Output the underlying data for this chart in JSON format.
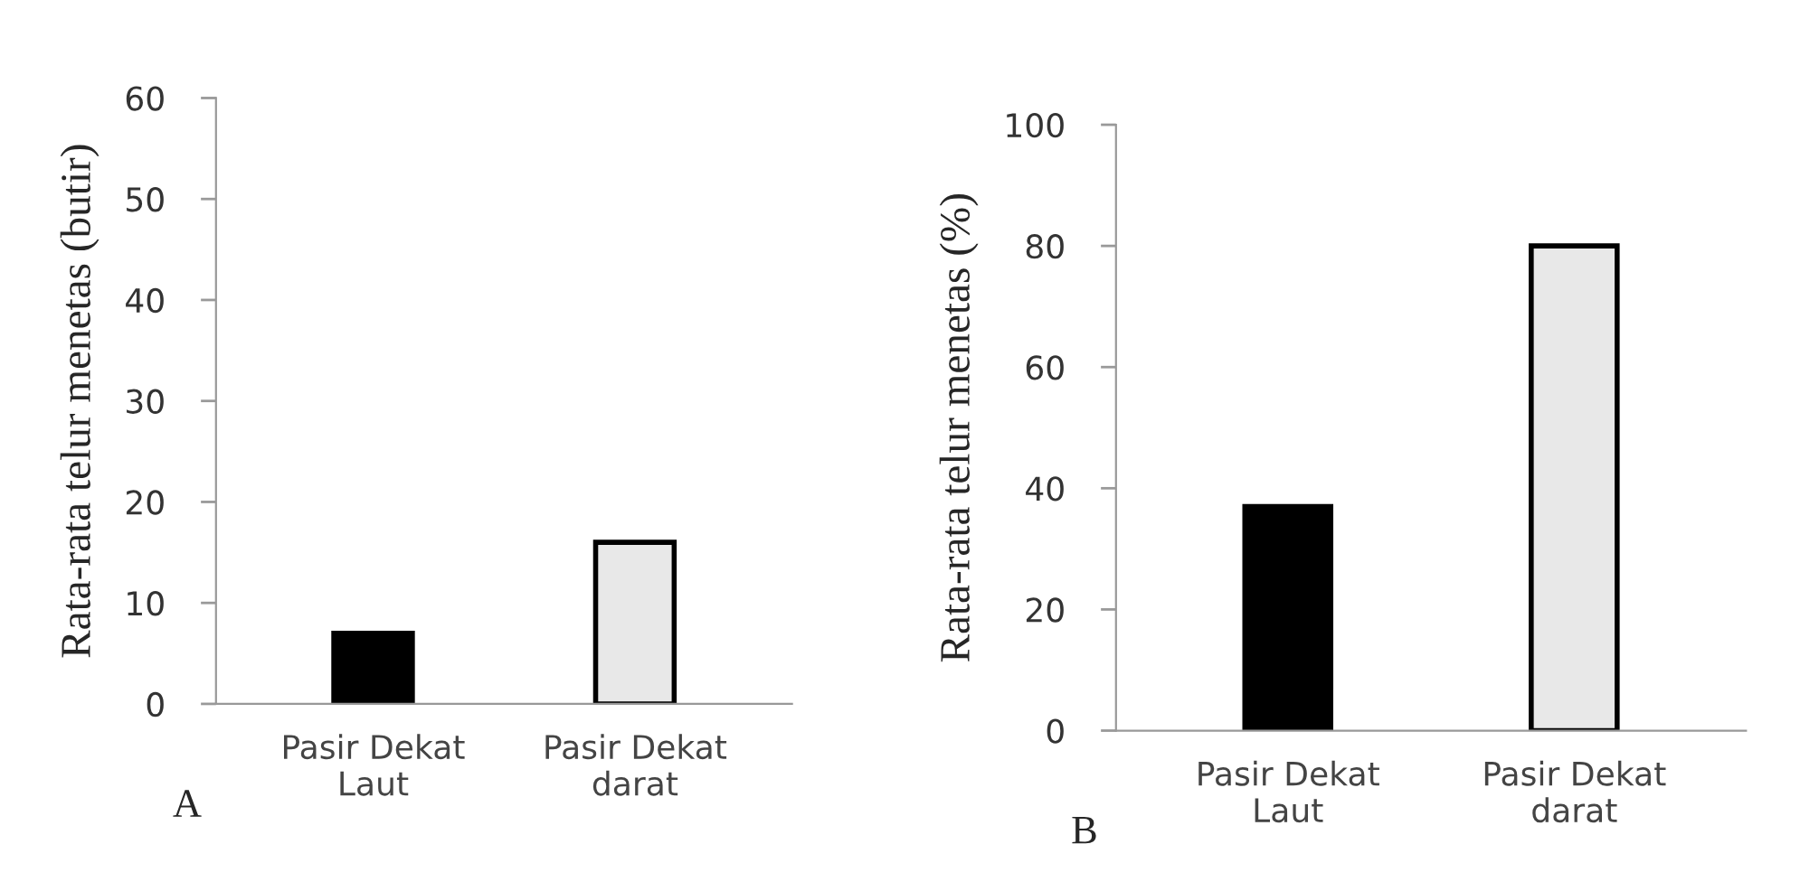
{
  "chart_data": [
    {
      "type": "bar",
      "ylabel": "Rata-rata telur menetas (butir)",
      "categories": [
        "Pasir Dekat\nLaut",
        "Pasir Dekat\ndarat"
      ],
      "values": [
        7,
        16
      ],
      "colors": [
        "#000000",
        "#e8e8e8"
      ],
      "ylim": [
        0,
        60
      ],
      "yticks": [
        0,
        10,
        20,
        30,
        40,
        50,
        60
      ],
      "grid": false,
      "annotations": [
        "A"
      ]
    },
    {
      "type": "bar",
      "ylabel": "Rata-rata telur menetas (%)",
      "categories": [
        "Pasir Dekat\nLaut",
        "Pasir Dekat\ndarat"
      ],
      "values": [
        37,
        80
      ],
      "colors": [
        "#000000",
        "#e8e8e8"
      ],
      "ylim": [
        0,
        100
      ],
      "yticks": [
        0,
        20,
        40,
        60,
        80,
        100
      ],
      "grid": false,
      "annotations": [
        "B"
      ]
    }
  ]
}
